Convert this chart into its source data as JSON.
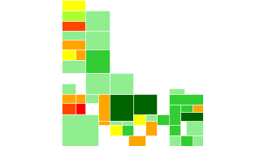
{
  "background_color": "#ffffff",
  "county_colors": {
    "Boundary": "#FFFF00",
    "Bonner": "#ADFF2F",
    "Kootenai": "#FF4500",
    "Shoshone": "#90EE90",
    "Benewah": "#90EE90",
    "Latah": "#FFA500",
    "Clearwater": "#90EE90",
    "Nez Perce": "#FFFF00",
    "Lewis": "#FFA500",
    "Idaho": "#32CD32",
    "Adams": "#90EE90",
    "Valley": "#90EE90",
    "Washington": "#90EE90",
    "Payette": "#FFA500",
    "Gem": "#FFA500",
    "Boise": "#90EE90",
    "Elmore": "#FFA500",
    "Ada": "#FF0000",
    "Canyon": "#FF4500",
    "Owyhee": "#90EE90",
    "Blaine": "#006400",
    "Camas": "#90EE90",
    "Gooding": "#FFA500",
    "Lincoln": "#90EE90",
    "Jerome": "#FFFF00",
    "Twin Falls": "#32CD32",
    "Minidoka": "#FFFF00",
    "Cassia": "#FFA500",
    "Power": "#FFA500",
    "Bannock": "#32CD32",
    "Bingham": "#32CD32",
    "Oneida": "#90EE90",
    "Franklin": "#32CD32",
    "Bear Lake": "#90EE90",
    "Caribou": "#90EE90",
    "Bonneville": "#006400",
    "Madison": "#32CD32",
    "Jefferson": "#32CD32",
    "Teton": "#FFA500",
    "Fremont": "#32CD32",
    "Clark": "#90EE90",
    "Lemhi": "#90EE90",
    "Custer": "#006400",
    "Butte": "#90EE90"
  },
  "lon_min": -117.25,
  "lon_max": -111.04,
  "lat_min": 41.99,
  "lat_max": 49.0
}
